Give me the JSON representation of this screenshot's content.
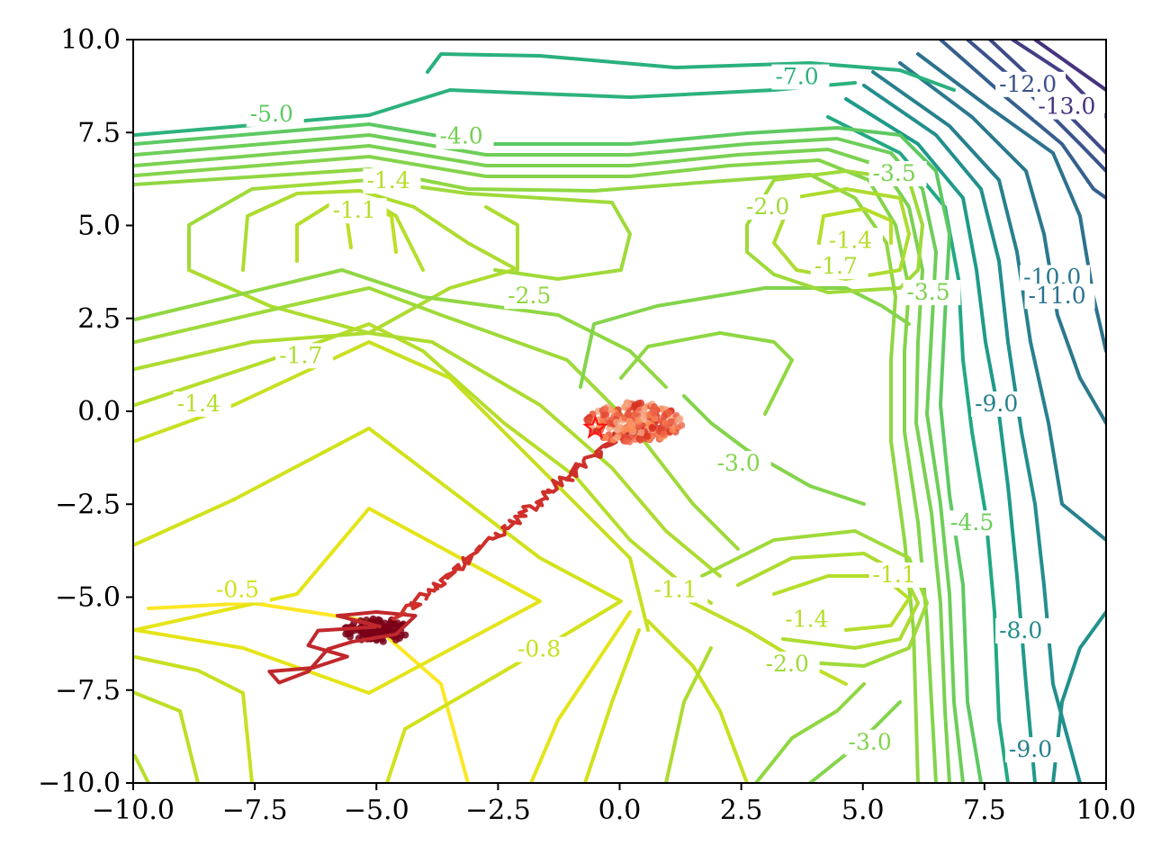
{
  "chart_data": {
    "type": "contour",
    "title": "",
    "xlabel": "",
    "ylabel": "",
    "xlim": [
      -10,
      10
    ],
    "ylim": [
      -10,
      10
    ],
    "grid": false,
    "legend": "none",
    "colormap": "viridis",
    "x_ticks": [
      "−10.0",
      "−7.5",
      "−5.0",
      "−2.5",
      "0.0",
      "2.5",
      "5.0",
      "7.5",
      "10.0"
    ],
    "y_ticks": [
      "−10.0",
      "−7.5",
      "−5.0",
      "−2.5",
      "0.0",
      "2.5",
      "5.0",
      "7.5",
      "10.0"
    ],
    "contour_levels": [
      -13,
      -12,
      -11,
      -10,
      -9,
      -8,
      -7,
      -6,
      -5,
      -4.5,
      -4,
      -3.5,
      -3,
      -2.5,
      -2,
      -1.7,
      -1.4,
      -1.1,
      -0.8,
      -0.5
    ],
    "contour_labels": [
      {
        "text": "-5.0",
        "x": -7.6,
        "y": 7.8,
        "color": "#5ec962"
      },
      {
        "text": "-4.0",
        "x": -3.7,
        "y": 7.2,
        "color": "#75cf53"
      },
      {
        "text": "-7.0",
        "x": 3.2,
        "y": 8.8,
        "color": "#2db27d"
      },
      {
        "text": "-12.0",
        "x": 7.8,
        "y": 8.6,
        "color": "#3b528b"
      },
      {
        "text": "-13.0",
        "x": 8.6,
        "y": 8.0,
        "color": "#46337e"
      },
      {
        "text": "-1.1",
        "x": -5.9,
        "y": 5.2,
        "color": "#b5de2b"
      },
      {
        "text": "-1.4",
        "x": -5.2,
        "y": 6.0,
        "color": "#b5de2b"
      },
      {
        "text": "-2.0",
        "x": 2.6,
        "y": 5.3,
        "color": "#9fda3a"
      },
      {
        "text": "-3.5",
        "x": 5.2,
        "y": 6.2,
        "color": "#7ad151"
      },
      {
        "text": "-1.4",
        "x": 4.3,
        "y": 4.4,
        "color": "#b5de2b"
      },
      {
        "text": "-1.7",
        "x": 4.0,
        "y": 3.7,
        "color": "#addc30"
      },
      {
        "text": "-3.5",
        "x": 5.9,
        "y": 3.0,
        "color": "#7ad151"
      },
      {
        "text": "-10.0",
        "x": 8.3,
        "y": 3.4,
        "color": "#2a788e"
      },
      {
        "text": "-11.0",
        "x": 8.4,
        "y": 2.9,
        "color": "#2c728e"
      },
      {
        "text": "-2.5",
        "x": -2.3,
        "y": 2.9,
        "color": "#90d743"
      },
      {
        "text": "-1.7",
        "x": -7.0,
        "y": 1.3,
        "color": "#addc30"
      },
      {
        "text": "-1.4",
        "x": -9.1,
        "y": 0.0,
        "color": "#b5de2b"
      },
      {
        "text": "-3.0",
        "x": 2.0,
        "y": -1.6,
        "color": "#84d44b"
      },
      {
        "text": "-9.0",
        "x": 7.3,
        "y": 0.0,
        "color": "#27808e"
      },
      {
        "text": "-4.5",
        "x": 6.8,
        "y": -3.2,
        "color": "#6cce59"
      },
      {
        "text": "-0.5",
        "x": -8.3,
        "y": -5.0,
        "color": "#d2e21b"
      },
      {
        "text": "-1.1",
        "x": 0.7,
        "y": -5.0,
        "color": "#bddf26"
      },
      {
        "text": "-1.1",
        "x": 5.2,
        "y": -4.6,
        "color": "#bddf26"
      },
      {
        "text": "-1.4",
        "x": 3.4,
        "y": -5.8,
        "color": "#b5de2b"
      },
      {
        "text": "-0.8",
        "x": -2.1,
        "y": -6.6,
        "color": "#c8e020"
      },
      {
        "text": "-2.0",
        "x": 3.0,
        "y": -7.0,
        "color": "#9fda3a"
      },
      {
        "text": "-8.0",
        "x": 7.8,
        "y": -6.1,
        "color": "#218f8d"
      },
      {
        "text": "-3.0",
        "x": 4.7,
        "y": -9.1,
        "color": "#84d44b"
      },
      {
        "text": "-9.0",
        "x": 8.0,
        "y": -9.3,
        "color": "#27808e"
      }
    ],
    "trajectory": {
      "color_start": "#b2182b",
      "color_end": "#f4a582",
      "start": [
        -5.0,
        -5.9
      ],
      "end": [
        0.3,
        -0.3
      ],
      "star_marker": [
        -0.5,
        -0.45
      ]
    }
  }
}
